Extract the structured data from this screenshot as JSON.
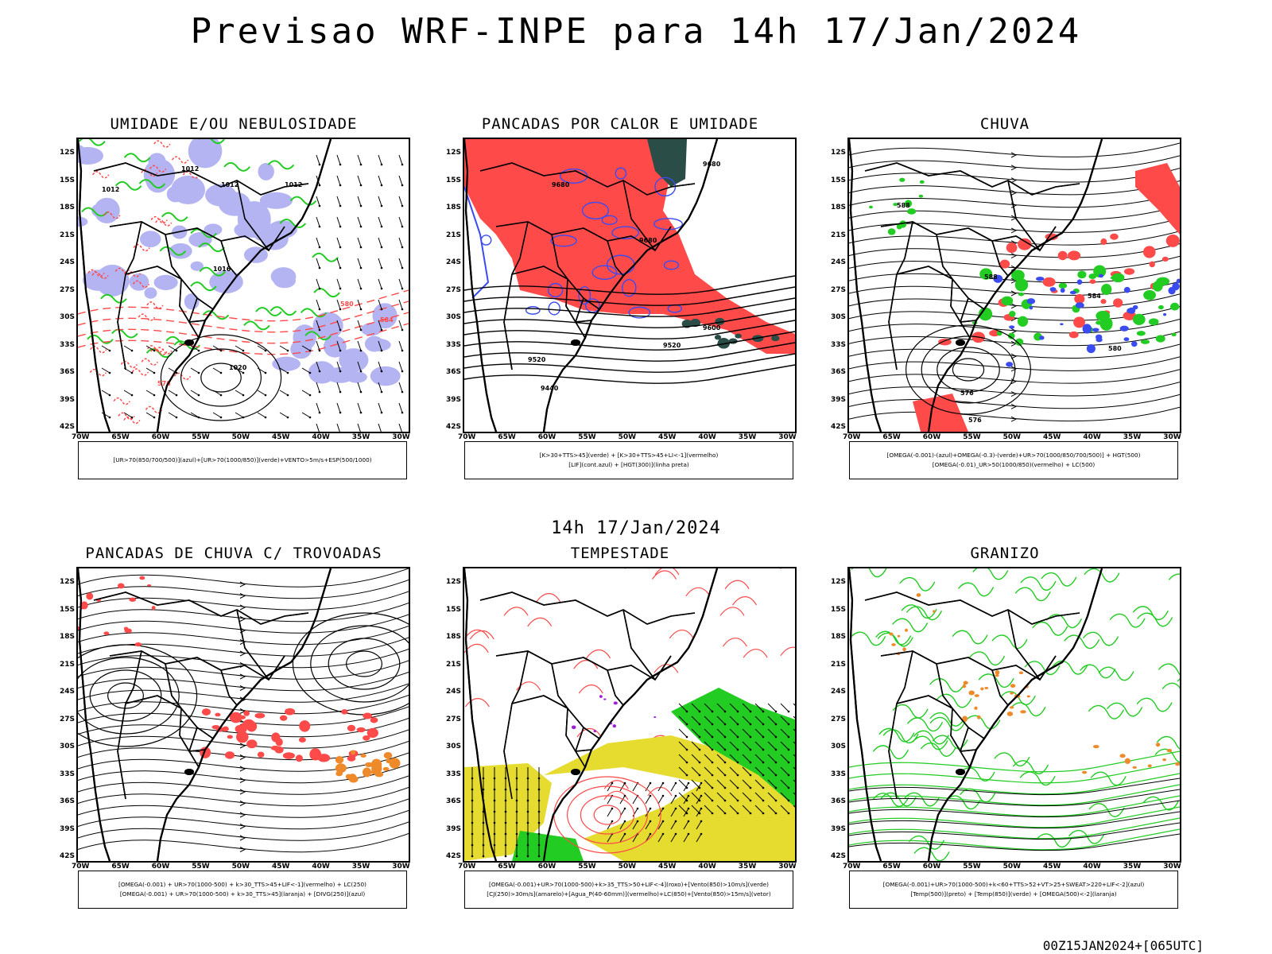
{
  "title": "Previsao WRF-INPE  para 14h 17/Jan/2024",
  "mid_title": "14h 17/Jan/2024",
  "footer": "00Z15JAN2024+[065UTC]",
  "lat_labels": [
    "12S",
    "15S",
    "18S",
    "21S",
    "24S",
    "27S",
    "30S",
    "33S",
    "36S",
    "39S",
    "42S"
  ],
  "lon_labels": [
    "70W",
    "65W",
    "60W",
    "55W",
    "50W",
    "45W",
    "40W",
    "35W",
    "30W"
  ],
  "colors": {
    "red": "#ff4a4a",
    "green": "#22cc22",
    "blue": "#3a4cf0",
    "lavender": "#b4b4f2",
    "orange": "#ef8a2a",
    "yellow": "#e6dc30",
    "darkteal": "#2b4d48",
    "purple": "#9b1fd6"
  },
  "panels": [
    {
      "id": "umidade",
      "title": "UMIDADE E/OU NEBULOSIDADE",
      "legend": [
        "[UR>70(850/700/500)](azul)+[UR>70(1000/850)](verde)+VENTO>5m/s+ESP(500/1000)"
      ],
      "contour_labels": [
        "1012",
        "1012",
        "1012",
        "1012",
        "1016",
        "1020",
        "576",
        "580",
        "584"
      ]
    },
    {
      "id": "pancadas_calor",
      "title": "PANCADAS POR CALOR E UMIDADE",
      "legend": [
        "[K>30+TTS>45](verde) + [K>30+TTS>45+LI<-1](vermelho)",
        "[LIF](cont.azul) + [HGT(300)](linha preta)"
      ],
      "contour_labels": [
        "9680",
        "9680",
        "9600",
        "9520",
        "9520",
        "9440",
        "9680"
      ]
    },
    {
      "id": "chuva",
      "title": "CHUVA",
      "legend": [
        "[OMEGA(-0.001)-(azul)+OMEGA(-0.3)-(verde)+UR>70(1000/850/700/500)] + HGT(500)",
        "[OMEGA(-0.01)_UR>50(1000/850)(vermelho) + LC(500)"
      ],
      "contour_labels": [
        "588",
        "588",
        "584",
        "580",
        "576",
        "576"
      ]
    },
    {
      "id": "trovoadas",
      "title": "PANCADAS DE CHUVA C/ TROVOADAS",
      "legend": [
        "[OMEGA(-0.001) + UR>70(1000-500) + k>30_TTS>45+LIF<-1](vermelho) + LC(250)",
        "[OMEGA(-0.001) + UR>70(1000-500) + k>30_TTS>45](laranja) + [DIVG(250)](azul)"
      ],
      "contour_labels": []
    },
    {
      "id": "tempestade",
      "title": "TEMPESTADE",
      "legend": [
        "[OMEGA(-0.001)+UR>70(1000-500)+k>35_TTS>50+LIF<-4](roxo)+[Vento(850)>10m/s](verde)",
        "[CJ(250)>30m/s](amarelo)+[Agua_P(40-60mm)](vermelho)+LC(850)+[Vento(850)>15m/s](vetor)"
      ],
      "contour_labels": []
    },
    {
      "id": "granizo",
      "title": "GRANIZO",
      "legend": [
        "[OMEGA(-0.001)+UR>70(1000-500)+k<60+TTS>52+VT>25+SWEAT>220+LIF<-2](azul)",
        "[Temp(500)](preto) + [Temp(850)](verde) + [OMEGA(500)<-2](laranja)"
      ],
      "contour_labels": []
    }
  ]
}
